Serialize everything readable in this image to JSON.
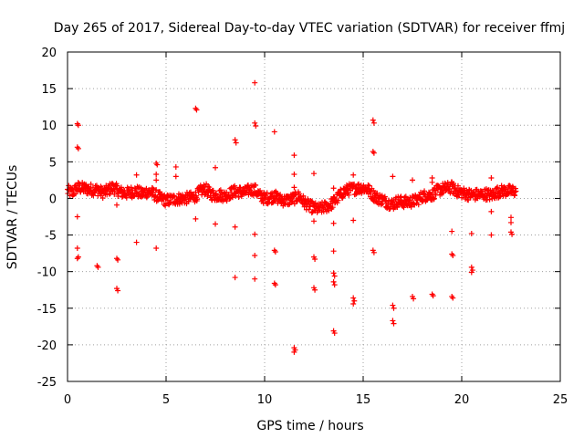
{
  "chart_data": {
    "type": "scatter",
    "title": "Day 265 of 2017, Sidereal Day-to-day VTEC variation (SDTVAR) for receiver ffmj",
    "xlabel": "GPS time / hours",
    "ylabel": "SDTVAR / TECUs",
    "xlim": [
      0,
      25
    ],
    "ylim": [
      -25,
      20
    ],
    "xticks": [
      0,
      5,
      10,
      15,
      20,
      25
    ],
    "yticks": [
      -25,
      -20,
      -15,
      -10,
      -5,
      0,
      5,
      10,
      15,
      20
    ],
    "xtick_labels": [
      "0",
      "5",
      "10",
      "15",
      "20",
      "25"
    ],
    "ytick_labels": [
      "-25",
      "-20",
      "-15",
      "-10",
      "-5",
      "0",
      "5",
      "10",
      "15",
      "20"
    ],
    "grid": true,
    "marker": "+",
    "color": "#ff0000",
    "series": [
      {
        "name": "SDTVAR",
        "band": [
          [
            0.0,
            1.0
          ],
          [
            0.25,
            0.8
          ],
          [
            0.5,
            1.5
          ],
          [
            0.75,
            1.4
          ],
          [
            1.0,
            1.3
          ],
          [
            1.25,
            1.2
          ],
          [
            1.5,
            1.2
          ],
          [
            1.75,
            0.8
          ],
          [
            2.0,
            1.0
          ],
          [
            2.25,
            1.5
          ],
          [
            2.5,
            1.2
          ],
          [
            2.75,
            0.8
          ],
          [
            3.0,
            0.7
          ],
          [
            3.25,
            0.9
          ],
          [
            3.5,
            1.0
          ],
          [
            3.75,
            0.6
          ],
          [
            4.0,
            0.9
          ],
          [
            4.25,
            0.8
          ],
          [
            4.5,
            0.4
          ],
          [
            4.75,
            0.0
          ],
          [
            5.0,
            -0.3
          ],
          [
            5.25,
            -0.2
          ],
          [
            5.5,
            -0.1
          ],
          [
            5.75,
            0.0
          ],
          [
            6.0,
            0.0
          ],
          [
            6.25,
            0.1
          ],
          [
            6.5,
            0.3
          ],
          [
            6.75,
            1.0
          ],
          [
            7.0,
            1.3
          ],
          [
            7.25,
            0.6
          ],
          [
            7.5,
            0.4
          ],
          [
            7.75,
            0.5
          ],
          [
            8.0,
            0.3
          ],
          [
            8.25,
            0.7
          ],
          [
            8.5,
            1.0
          ],
          [
            8.75,
            0.9
          ],
          [
            9.0,
            0.8
          ],
          [
            9.25,
            1.2
          ],
          [
            9.5,
            1.2
          ],
          [
            9.75,
            0.4
          ],
          [
            10.0,
            0.0
          ],
          [
            10.25,
            0.1
          ],
          [
            10.5,
            0.3
          ],
          [
            10.75,
            -0.1
          ],
          [
            11.0,
            -0.3
          ],
          [
            11.25,
            -0.2
          ],
          [
            11.5,
            0.0
          ],
          [
            11.75,
            0.3
          ],
          [
            12.0,
            -0.5
          ],
          [
            12.25,
            -1.0
          ],
          [
            12.5,
            -1.3
          ],
          [
            12.75,
            -1.5
          ],
          [
            13.0,
            -1.2
          ],
          [
            13.25,
            -1.0
          ],
          [
            13.5,
            -0.5
          ],
          [
            13.75,
            0.2
          ],
          [
            14.0,
            0.9
          ],
          [
            14.25,
            1.2
          ],
          [
            14.5,
            1.3
          ],
          [
            14.75,
            1.4
          ],
          [
            15.0,
            1.5
          ],
          [
            15.25,
            1.2
          ],
          [
            15.5,
            0.5
          ],
          [
            15.75,
            0.0
          ],
          [
            16.0,
            -0.2
          ],
          [
            16.25,
            -0.6
          ],
          [
            16.5,
            -0.8
          ],
          [
            16.75,
            -0.4
          ],
          [
            17.0,
            -0.5
          ],
          [
            17.25,
            -0.5
          ],
          [
            17.5,
            -0.4
          ],
          [
            17.75,
            -0.2
          ],
          [
            18.0,
            0.3
          ],
          [
            18.25,
            0.4
          ],
          [
            18.5,
            0.5
          ],
          [
            18.75,
            1.0
          ],
          [
            19.0,
            1.3
          ],
          [
            19.25,
            1.4
          ],
          [
            19.5,
            1.5
          ],
          [
            19.75,
            1.0
          ],
          [
            20.0,
            0.8
          ],
          [
            20.25,
            0.6
          ],
          [
            20.5,
            0.5
          ],
          [
            20.75,
            0.5
          ],
          [
            21.0,
            0.5
          ],
          [
            21.25,
            0.6
          ],
          [
            21.5,
            0.4
          ],
          [
            21.75,
            0.8
          ],
          [
            22.0,
            1.0
          ],
          [
            22.25,
            1.0
          ],
          [
            22.5,
            1.0
          ],
          [
            22.75,
            1.0
          ]
        ],
        "outliers": [
          [
            0.5,
            10.2
          ],
          [
            0.55,
            10.0
          ],
          [
            0.5,
            7.0
          ],
          [
            0.55,
            6.8
          ],
          [
            0.5,
            -2.5
          ],
          [
            0.5,
            -6.8
          ],
          [
            0.55,
            -8.0
          ],
          [
            0.5,
            -8.2
          ],
          [
            1.5,
            -9.2
          ],
          [
            1.55,
            -9.4
          ],
          [
            2.5,
            -0.9
          ],
          [
            2.5,
            -8.2
          ],
          [
            2.55,
            -8.4
          ],
          [
            2.5,
            -12.3
          ],
          [
            2.55,
            -12.6
          ],
          [
            3.5,
            3.2
          ],
          [
            3.5,
            -6.0
          ],
          [
            4.5,
            4.8
          ],
          [
            4.55,
            4.6
          ],
          [
            4.5,
            3.3
          ],
          [
            4.5,
            2.5
          ],
          [
            4.5,
            -6.8
          ],
          [
            5.5,
            4.3
          ],
          [
            5.5,
            3.0
          ],
          [
            6.5,
            12.3
          ],
          [
            6.55,
            12.1
          ],
          [
            6.5,
            -2.8
          ],
          [
            7.5,
            4.2
          ],
          [
            7.5,
            -3.5
          ],
          [
            8.5,
            8.0
          ],
          [
            8.55,
            7.6
          ],
          [
            8.5,
            -3.9
          ],
          [
            8.5,
            -10.8
          ],
          [
            9.5,
            15.8
          ],
          [
            9.5,
            10.3
          ],
          [
            9.55,
            9.9
          ],
          [
            9.5,
            -4.9
          ],
          [
            9.5,
            -7.8
          ],
          [
            9.5,
            -11.0
          ],
          [
            10.5,
            9.1
          ],
          [
            10.5,
            0.8
          ],
          [
            10.5,
            -7.1
          ],
          [
            10.55,
            -7.3
          ],
          [
            10.5,
            -11.6
          ],
          [
            10.55,
            -11.8
          ],
          [
            11.5,
            5.9
          ],
          [
            11.5,
            3.3
          ],
          [
            11.5,
            1.5
          ],
          [
            11.5,
            -20.4
          ],
          [
            11.55,
            -20.7
          ],
          [
            11.5,
            -21.0
          ],
          [
            12.5,
            3.4
          ],
          [
            12.5,
            -3.1
          ],
          [
            12.5,
            -8.0
          ],
          [
            12.55,
            -8.3
          ],
          [
            12.5,
            -12.2
          ],
          [
            12.55,
            -12.5
          ],
          [
            13.5,
            1.4
          ],
          [
            13.5,
            -3.4
          ],
          [
            13.5,
            -7.2
          ],
          [
            13.5,
            -10.2
          ],
          [
            13.55,
            -10.6
          ],
          [
            13.5,
            -11.4
          ],
          [
            13.55,
            -11.8
          ],
          [
            13.5,
            -18.1
          ],
          [
            13.55,
            -18.4
          ],
          [
            14.5,
            3.2
          ],
          [
            14.5,
            -3.0
          ],
          [
            14.5,
            -13.6
          ],
          [
            14.55,
            -14.0
          ],
          [
            14.5,
            -14.4
          ],
          [
            15.5,
            10.7
          ],
          [
            15.55,
            10.3
          ],
          [
            15.5,
            6.4
          ],
          [
            15.55,
            6.2
          ],
          [
            15.5,
            -7.1
          ],
          [
            15.55,
            -7.4
          ],
          [
            16.5,
            3.0
          ],
          [
            16.5,
            -14.6
          ],
          [
            16.55,
            -15.0
          ],
          [
            16.5,
            -16.7
          ],
          [
            16.55,
            -17.1
          ],
          [
            17.5,
            2.5
          ],
          [
            17.5,
            -13.4
          ],
          [
            17.55,
            -13.7
          ],
          [
            18.5,
            2.8
          ],
          [
            18.5,
            2.2
          ],
          [
            18.5,
            -13.1
          ],
          [
            18.55,
            -13.3
          ],
          [
            19.5,
            -4.5
          ],
          [
            19.5,
            -7.6
          ],
          [
            19.55,
            -7.8
          ],
          [
            19.5,
            -13.4
          ],
          [
            19.55,
            -13.6
          ],
          [
            20.5,
            -4.8
          ],
          [
            20.5,
            -9.4
          ],
          [
            20.55,
            -9.8
          ],
          [
            20.5,
            -10.1
          ],
          [
            21.5,
            2.8
          ],
          [
            21.5,
            -1.8
          ],
          [
            21.5,
            -5.0
          ],
          [
            22.5,
            -2.6
          ],
          [
            22.5,
            -3.3
          ],
          [
            22.5,
            -4.6
          ],
          [
            22.55,
            -4.9
          ]
        ]
      }
    ]
  }
}
